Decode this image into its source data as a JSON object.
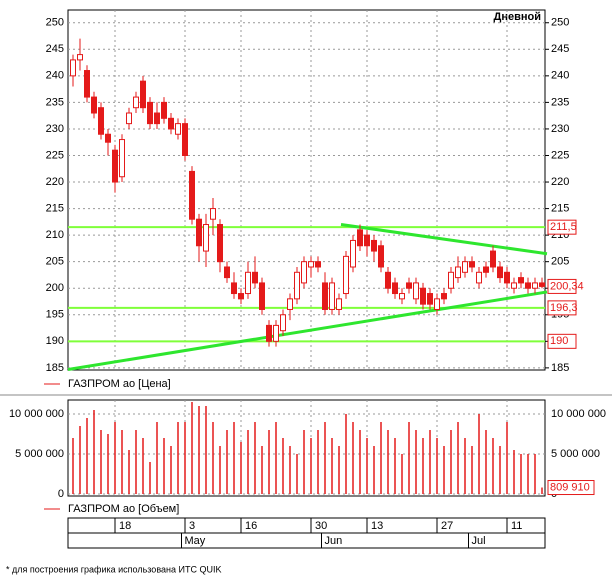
{
  "chart_data": {
    "type": "candlestick",
    "title": "Дневной",
    "price_legend": "ГАЗПРОМ ао [Цена]",
    "volume_legend": "ГАЗПРОМ ао [Объем]",
    "footnote": "* для построения графика использована ИТС QUIK",
    "categories": [
      null,
      null,
      null,
      null,
      null,
      null,
      "18",
      null,
      null,
      null,
      null,
      null,
      null,
      null,
      null,
      null,
      "3",
      null,
      null,
      null,
      null,
      null,
      null,
      null,
      "16",
      null,
      null,
      null,
      null,
      null,
      null,
      null,
      null,
      null,
      "30",
      null,
      null,
      null,
      null,
      null,
      null,
      null,
      "13",
      null,
      null,
      null,
      null,
      null,
      null,
      null,
      null,
      null,
      "27",
      null,
      null,
      null,
      null,
      null,
      null,
      null,
      null,
      null,
      "11",
      null,
      null,
      null,
      null,
      null
    ],
    "months": [
      "May",
      "Jun",
      "Jul"
    ],
    "open": [
      240,
      243,
      241,
      236,
      234,
      229,
      226,
      221,
      231,
      234,
      239,
      235,
      233,
      235,
      232,
      229,
      231,
      222,
      213,
      207,
      213,
      212,
      204,
      201,
      199,
      199,
      203,
      201,
      193,
      190,
      192,
      196,
      198,
      201,
      204,
      205,
      201,
      196,
      196,
      199,
      204,
      211,
      210,
      209,
      208,
      203,
      201,
      198,
      201,
      198,
      200,
      199,
      196,
      199,
      200,
      202,
      203,
      205,
      201,
      204,
      207,
      204,
      203,
      200,
      202,
      201,
      200,
      201
    ],
    "high": [
      244,
      247,
      242,
      237,
      235,
      230,
      227,
      229,
      234,
      237,
      240,
      236,
      235,
      236,
      233,
      232,
      232,
      223,
      214,
      214,
      217,
      213,
      205,
      203,
      200,
      205,
      206,
      202,
      194,
      194,
      196,
      199,
      204,
      206,
      206,
      206,
      203,
      202,
      199,
      207,
      210,
      212,
      211,
      210,
      209,
      204,
      202,
      200,
      202,
      202,
      201,
      200,
      199,
      200,
      204,
      206,
      206,
      206,
      204,
      205,
      208,
      205,
      204,
      202,
      203,
      202,
      202,
      202
    ],
    "low": [
      238,
      241,
      235,
      232,
      228,
      225,
      218,
      220,
      230,
      233,
      233,
      230,
      230,
      231,
      229,
      228,
      224,
      212,
      205,
      204,
      210,
      203,
      201,
      198,
      197,
      198,
      200,
      195,
      189,
      189,
      191,
      194,
      197,
      200,
      202,
      203,
      195,
      195,
      195,
      198,
      203,
      207,
      206,
      205,
      203,
      199,
      198,
      197,
      199,
      197,
      196,
      196,
      195,
      197,
      199,
      201,
      202,
      203,
      200,
      202,
      203,
      201,
      200,
      199,
      200,
      199,
      199,
      200
    ],
    "close": [
      243,
      244,
      236,
      233,
      229,
      227.5,
      220,
      228,
      233,
      236,
      234,
      231,
      231,
      232,
      230,
      231,
      225,
      213,
      208,
      212,
      215,
      205,
      202,
      199,
      198,
      203,
      201,
      196,
      190,
      193,
      195,
      198,
      203,
      205,
      205,
      204,
      196,
      201,
      198,
      206,
      209,
      208,
      208,
      207,
      204,
      200,
      199,
      199,
      200,
      201,
      197,
      197,
      198,
      198,
      203,
      204,
      205,
      204,
      203,
      203,
      204,
      202,
      201,
      201,
      201,
      200,
      201,
      200.34
    ],
    "up_color": "#ffffff",
    "down_color": "#e41a1a",
    "edge_color": "#e41a1a",
    "ylim": [
      184.6,
      252.4
    ],
    "yticks": [
      185,
      190,
      195,
      200,
      205,
      210,
      215,
      220,
      225,
      230,
      235,
      240,
      245,
      250
    ],
    "grid": true,
    "levels": [
      {
        "value": 211.5,
        "label": "211,5"
      },
      {
        "value": 196.3,
        "label": "196,3"
      },
      {
        "value": 190,
        "label": "190"
      }
    ],
    "level_color": "#7fff3a",
    "last_price": {
      "value": 200.34,
      "label": "200,34"
    },
    "trendlines": [
      {
        "x": [
          0,
          67
        ],
        "y": [
          184.7,
          199.3
        ]
      },
      {
        "x": [
          39,
          67
        ],
        "y": [
          212,
          206.5
        ]
      }
    ],
    "trend_color": "#2ee62e",
    "volume": [
      7000000,
      8500000,
      9500000,
      10500000,
      8000000,
      7500000,
      9000000,
      8000000,
      5500000,
      8000000,
      7000000,
      4000000,
      9000000,
      7000000,
      6000000,
      9000000,
      9000000,
      11500000,
      11000000,
      11000000,
      9000000,
      6000000,
      8000000,
      9000000,
      6500000,
      8000000,
      9000000,
      6000000,
      8000000,
      9000000,
      7000000,
      6000000,
      5000000,
      8000000,
      7000000,
      8000000,
      9000000,
      7000000,
      6000000,
      10000000,
      9000000,
      8000000,
      7000000,
      6000000,
      9000000,
      8000000,
      7000000,
      5000000,
      9000000,
      8000000,
      7000000,
      8000000,
      7000000,
      6000000,
      8000000,
      9000000,
      7000000,
      6000000,
      10000000,
      8000000,
      7000000,
      6000000,
      9000000,
      5500000,
      5000000,
      5000000,
      5000000,
      809910
    ],
    "volume_color": "#e41a1a",
    "volume_ylim": [
      0,
      12500000
    ],
    "volume_yticks": [
      0,
      {
        "value": 5000000,
        "label": "5 000 000"
      },
      {
        "value": 10000000,
        "label": "10 000 000"
      }
    ],
    "last_volume": {
      "value": 809910,
      "label": "809 910"
    }
  }
}
